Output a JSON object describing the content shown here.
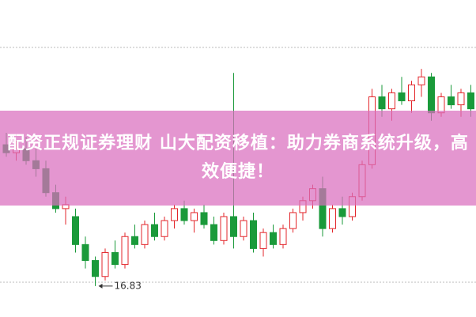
{
  "chart_data": {
    "type": "candlestick",
    "title": "配资正规证券理财 山大配资移植：助力券商系统升级，高效便捷！",
    "annotation": "16.83",
    "up_color": "#e3262b",
    "down_color": "#1a9a3a",
    "ylim": [
      16.7,
      19.7
    ],
    "open": [
      18.6,
      18.5,
      18.55,
      18.4,
      18.3,
      18.0,
      17.8,
      17.7,
      17.35,
      17.15,
      16.95,
      17.25,
      17.1,
      17.45,
      17.35,
      17.6,
      17.45,
      17.65,
      17.8,
      17.65,
      17.75,
      17.6,
      17.4,
      17.7,
      17.45,
      17.65,
      17.3,
      17.5,
      17.35,
      17.55,
      17.75,
      17.9,
      18.05,
      17.55,
      17.8,
      17.7,
      17.95,
      18.35,
      19.2,
      19.05,
      19.25,
      19.15,
      19.35,
      19.45,
      19.0,
      19.2,
      19.1,
      19.25
    ],
    "high": [
      18.75,
      18.65,
      18.7,
      18.55,
      18.4,
      18.1,
      17.95,
      17.8,
      17.45,
      17.2,
      17.3,
      17.4,
      17.5,
      17.6,
      17.65,
      17.75,
      17.7,
      17.85,
      17.9,
      17.8,
      17.85,
      17.7,
      17.75,
      19.5,
      17.7,
      17.75,
      17.55,
      17.6,
      17.6,
      17.8,
      17.95,
      18.1,
      18.2,
      17.85,
      17.95,
      18.0,
      18.4,
      19.3,
      19.35,
      19.3,
      19.45,
      19.4,
      19.55,
      19.5,
      19.25,
      19.35,
      19.3,
      19.35
    ],
    "low": [
      18.45,
      18.4,
      18.35,
      18.2,
      17.95,
      17.75,
      17.6,
      17.25,
      17.05,
      16.83,
      16.9,
      17.05,
      17.05,
      17.3,
      17.3,
      17.4,
      17.4,
      17.55,
      17.6,
      17.5,
      17.55,
      17.35,
      17.35,
      17.3,
      17.4,
      17.25,
      17.2,
      17.3,
      17.3,
      17.5,
      17.65,
      17.8,
      17.45,
      17.5,
      17.6,
      17.65,
      17.9,
      18.3,
      18.95,
      18.9,
      19.1,
      19.0,
      19.2,
      18.9,
      18.95,
      19.05,
      18.95,
      18.95
    ],
    "close": [
      18.5,
      18.55,
      18.4,
      18.3,
      18.0,
      17.8,
      17.85,
      17.35,
      17.15,
      16.95,
      17.25,
      17.1,
      17.45,
      17.35,
      17.6,
      17.45,
      17.65,
      17.8,
      17.65,
      17.75,
      17.6,
      17.4,
      17.7,
      17.45,
      17.65,
      17.3,
      17.5,
      17.35,
      17.55,
      17.75,
      17.9,
      18.05,
      17.55,
      17.8,
      17.7,
      17.95,
      18.35,
      19.2,
      19.05,
      19.25,
      19.15,
      19.35,
      19.45,
      19.0,
      19.2,
      19.1,
      19.25,
      19.05
    ]
  }
}
